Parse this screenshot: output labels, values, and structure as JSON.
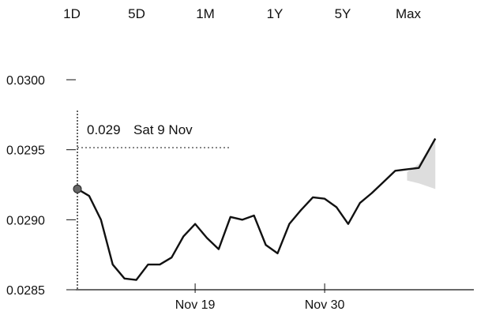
{
  "range_tabs": [
    {
      "label": "1D"
    },
    {
      "label": "5D"
    },
    {
      "label": "1M"
    },
    {
      "label": "1Y"
    },
    {
      "label": "5Y"
    },
    {
      "label": "Max"
    }
  ],
  "tooltip": {
    "value": "0.029",
    "date": "Sat 9 Nov"
  },
  "chart_data": {
    "type": "line",
    "title": "",
    "xlabel": "",
    "ylabel": "",
    "ylim": [
      0.0285,
      0.03
    ],
    "yticks": [
      {
        "value": 0.03,
        "label": "0.0300"
      },
      {
        "value": 0.0295,
        "label": "0.0295"
      },
      {
        "value": 0.029,
        "label": "0.0290"
      },
      {
        "value": 0.0285,
        "label": "0.0285"
      }
    ],
    "xlim": [
      9,
      42
    ],
    "xticks": [
      {
        "day": 19,
        "label": "Nov 19"
      },
      {
        "day": 30,
        "label": "Nov 30"
      }
    ],
    "highlight": {
      "day": 9,
      "value": 0.02922
    },
    "series": [
      {
        "x": [
          9,
          10,
          11,
          12,
          13,
          14,
          15,
          16,
          17,
          18,
          19,
          20,
          21,
          22,
          23,
          24,
          25,
          26,
          27,
          28,
          29,
          30,
          31,
          32,
          33,
          34,
          35,
          36,
          37,
          38
        ],
        "values": [
          0.02922,
          0.02917,
          0.029,
          0.02868,
          0.02858,
          0.02857,
          0.02868,
          0.02868,
          0.02873,
          0.02888,
          0.02897,
          0.02887,
          0.02879,
          0.02902,
          0.029,
          0.02903,
          0.02882,
          0.02876,
          0.02897,
          0.02907,
          0.02916,
          0.02915,
          0.02909,
          0.02897,
          0.02912,
          0.02919,
          0.02927,
          0.02935,
          0.02936,
          0.02937
        ]
      }
    ],
    "last_point": {
      "x": 39.4,
      "value": 0.02958
    },
    "band": {
      "x": [
        37,
        38,
        39.4
      ],
      "upper": [
        0.02934,
        0.0294,
        0.02958
      ],
      "lower": [
        0.02928,
        0.02926,
        0.02922
      ]
    }
  }
}
